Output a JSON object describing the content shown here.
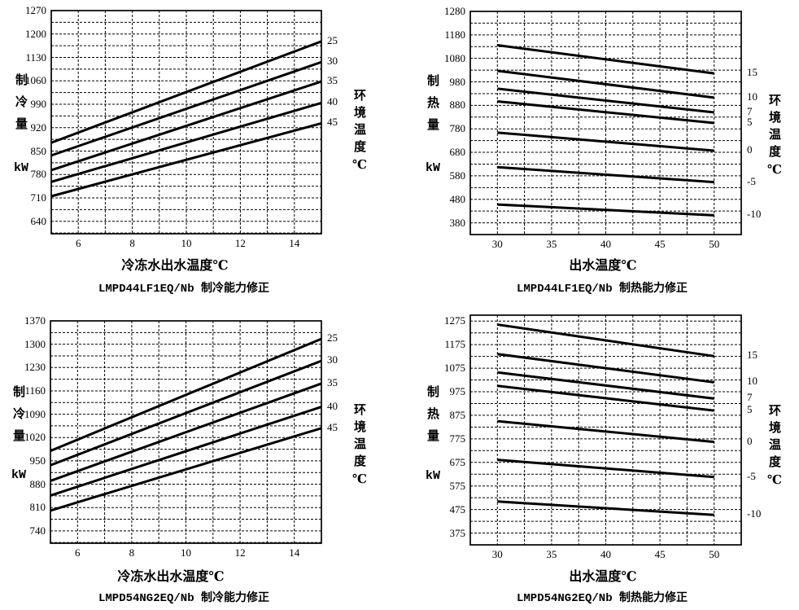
{
  "page": {
    "background": "#ffffff",
    "line_color": "#000000"
  },
  "chart_data": [
    {
      "type": "line",
      "title": "LMPD44LF1EQ/Nb 制冷能力修正",
      "xlabel": "冷冻水出水温度℃",
      "ylabel": "制冷量",
      "y_unit": "kW",
      "right_axis_label": "环境温度℃",
      "grid": true,
      "legend_position": "right-of-line-ends",
      "x_range": [
        5,
        15
      ],
      "x_grid_step": 1,
      "x_ticks": [
        6,
        8,
        10,
        12,
        14
      ],
      "y_range": [
        603,
        1270
      ],
      "y_grid_step": 35,
      "y_ticks": [
        640,
        710,
        780,
        850,
        920,
        990,
        1060,
        1130,
        1200,
        1270
      ],
      "series": [
        {
          "name": "25",
          "x": [
            5,
            15
          ],
          "y": [
            875,
            1178
          ]
        },
        {
          "name": "30",
          "x": [
            5,
            15
          ],
          "y": [
            837,
            1116
          ]
        },
        {
          "name": "35",
          "x": [
            5,
            15
          ],
          "y": [
            793,
            1058
          ]
        },
        {
          "name": "40",
          "x": [
            5,
            15
          ],
          "y": [
            758,
            994
          ]
        },
        {
          "name": "45",
          "x": [
            5,
            15
          ],
          "y": [
            715,
            933
          ]
        }
      ]
    },
    {
      "type": "line",
      "title": "LMPD44LF1EQ/Nb 制热能力修正",
      "xlabel": "出水温度℃",
      "ylabel": "制热量",
      "y_unit": "kW",
      "right_axis_label": "环境温度℃",
      "grid": true,
      "legend_position": "right-of-line-ends",
      "x_range": [
        27.5,
        52.5
      ],
      "x_grid_step": 2.5,
      "x_ticks": [
        30,
        35,
        40,
        45,
        50
      ],
      "y_range": [
        330,
        1280
      ],
      "y_grid_step": 50,
      "y_ticks": [
        380,
        480,
        580,
        680,
        780,
        880,
        980,
        1080,
        1180,
        1280
      ],
      "series": [
        {
          "name": "15",
          "x": [
            30,
            50
          ],
          "y": [
            1136,
            1016
          ]
        },
        {
          "name": "10",
          "x": [
            30,
            50
          ],
          "y": [
            1027,
            913
          ]
        },
        {
          "name": "7",
          "x": [
            30,
            50
          ],
          "y": [
            951,
            850
          ]
        },
        {
          "name": "5",
          "x": [
            30,
            50
          ],
          "y": [
            897,
            805
          ]
        },
        {
          "name": "0",
          "x": [
            30,
            50
          ],
          "y": [
            764,
            687
          ]
        },
        {
          "name": "-5",
          "x": [
            30,
            50
          ],
          "y": [
            617,
            553
          ]
        },
        {
          "name": "-10",
          "x": [
            30,
            50
          ],
          "y": [
            458,
            412
          ]
        }
      ]
    },
    {
      "type": "line",
      "title": "LMPD54NG2EQ/Nb 制冷能力修正",
      "xlabel": "冷冻水出水温度℃",
      "ylabel": "制冷量",
      "y_unit": "kW",
      "right_axis_label": "环境温度℃",
      "grid": true,
      "legend_position": "right-of-line-ends",
      "x_range": [
        5,
        15
      ],
      "x_grid_step": 1,
      "x_ticks": [
        6,
        8,
        10,
        12,
        14
      ],
      "y_range": [
        703,
        1370
      ],
      "y_grid_step": 35,
      "y_ticks": [
        740,
        810,
        880,
        950,
        1020,
        1090,
        1160,
        1230,
        1300,
        1370
      ],
      "series": [
        {
          "name": "25",
          "x": [
            5,
            15
          ],
          "y": [
            980,
            1316
          ]
        },
        {
          "name": "30",
          "x": [
            5,
            15
          ],
          "y": [
            937,
            1250
          ]
        },
        {
          "name": "35",
          "x": [
            5,
            15
          ],
          "y": [
            890,
            1182
          ]
        },
        {
          "name": "40",
          "x": [
            5,
            15
          ],
          "y": [
            846,
            1112
          ]
        },
        {
          "name": "45",
          "x": [
            5,
            15
          ],
          "y": [
            801,
            1048
          ]
        }
      ]
    },
    {
      "type": "line",
      "title": "LMPD54NG2EQ/Nb 制热能力修正",
      "xlabel": "出水温度℃",
      "ylabel": "制热量",
      "y_unit": "kW",
      "right_axis_label": "环境温度℃",
      "grid": true,
      "legend_position": "right-of-line-ends",
      "x_range": [
        27.5,
        52.5
      ],
      "x_grid_step": 2.5,
      "x_ticks": [
        30,
        35,
        40,
        45,
        50
      ],
      "y_range": [
        325,
        1300
      ],
      "y_grid_step": 50,
      "y_ticks": [
        375,
        475,
        575,
        675,
        775,
        875,
        975,
        1075,
        1175,
        1275
      ],
      "series": [
        {
          "name": "15",
          "x": [
            30,
            50
          ],
          "y": [
            1260,
            1126
          ]
        },
        {
          "name": "10",
          "x": [
            30,
            50
          ],
          "y": [
            1135,
            1015
          ]
        },
        {
          "name": "7",
          "x": [
            30,
            50
          ],
          "y": [
            1057,
            946
          ]
        },
        {
          "name": "5",
          "x": [
            30,
            50
          ],
          "y": [
            1000,
            895
          ]
        },
        {
          "name": "0",
          "x": [
            30,
            50
          ],
          "y": [
            850,
            762
          ]
        },
        {
          "name": "-5",
          "x": [
            30,
            50
          ],
          "y": [
            686,
            613
          ]
        },
        {
          "name": "-10",
          "x": [
            30,
            50
          ],
          "y": [
            509,
            452
          ]
        }
      ]
    }
  ]
}
